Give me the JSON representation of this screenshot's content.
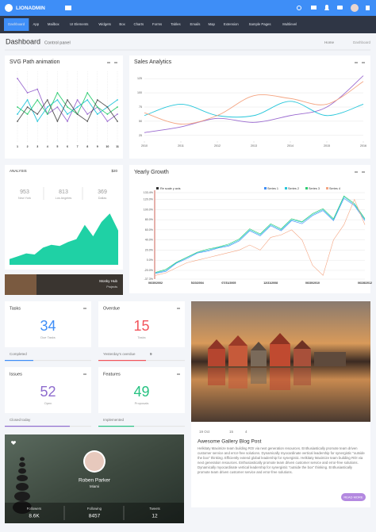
{
  "topbar": {
    "logo": "LIONADMIN"
  },
  "nav": [
    "Dashboard",
    "App",
    "Mailbox",
    "UI Elements",
    "Widgets",
    "Box",
    "Charts",
    "Forms",
    "Tables",
    "Emails",
    "Map",
    "Extension",
    "Sample Pages",
    "Multilevel"
  ],
  "page": {
    "title": "Dashboard",
    "subtitle": "Control panel",
    "breadcrumb": [
      "Home",
      "Dashboard"
    ]
  },
  "cards": {
    "svg_title": "SVG Path animation",
    "sales_title": "Sales Analytics",
    "growth_title": "Yearly Growth",
    "growth_toggle": "Re scale y axis",
    "analysis": {
      "label": "ANALYSIS",
      "value": "$20",
      "stats": [
        {
          "value": "953",
          "label": "New York"
        },
        {
          "value": "813",
          "label": "Los Angeles"
        },
        {
          "value": "369",
          "label": "Dallas"
        }
      ]
    },
    "image_caption": [
      "Monky Hub",
      "Projects"
    ]
  },
  "stats": [
    {
      "title": "Tasks",
      "value": "34",
      "label": "Due Tasks",
      "footer": "Completed",
      "count": null
    },
    {
      "title": "Overdue",
      "value": "15",
      "label": "Tasks",
      "footer": "Yesterday's overdue",
      "count": "9"
    },
    {
      "title": "Issues",
      "value": "52",
      "label": "Open",
      "footer": "Closed today",
      "count": null
    },
    {
      "title": "Features",
      "value": "49",
      "label": "Proposals",
      "footer": "Implemented",
      "count": null
    }
  ],
  "blog": {
    "date": "19 Oct",
    "likes": "15",
    "comments": "4",
    "title": "Awesome Gallery Blog Post",
    "text": "Helkitaty Maximize team building ROI via next generation resources. Enthusiastically promote team driven customer service and error-free solutions. Dynamically myocardinate vertical leadership for synergistic \"outside the box\" thinking. Efficiently extend global leadership for synergistic. Helkitaty Maximize team building ROI via next generation resources. Enthusiastically promote team driven customer service and error-free solutions. Dynamically myocardinate vertical leadership for synergistic \"outside the box\" thinking. Enthusiastically promote team driven customer service and error-free solutions.",
    "button": "READ MORE"
  },
  "profile": {
    "name": "Roben Parker",
    "location": "Miami",
    "stats": [
      {
        "label": "Followers",
        "value": "8.6K"
      },
      {
        "label": "Following",
        "value": "8457"
      },
      {
        "label": "Tweets",
        "value": "12"
      }
    ]
  },
  "chart_data": [
    {
      "type": "line",
      "categories": [
        "1",
        "2",
        "3",
        "4",
        "5",
        "6",
        "7",
        "8",
        "9",
        "10",
        "11"
      ],
      "ylim": [
        0,
        10
      ],
      "grid": true,
      "series": [
        {
          "color": "#9b6bd0",
          "values": [
            9,
            7,
            7.5,
            4,
            5,
            3,
            6,
            4,
            5,
            3,
            4
          ]
        },
        {
          "color": "#26c6da",
          "values": [
            4,
            6,
            3,
            5,
            6,
            4,
            5,
            6,
            4,
            5,
            6
          ]
        },
        {
          "color": "#2ecc71",
          "values": [
            5,
            4,
            6,
            4,
            7,
            5,
            4,
            7,
            5,
            4,
            5
          ]
        },
        {
          "color": "#555555",
          "values": [
            3,
            5,
            4,
            6,
            3,
            6,
            4,
            3,
            6,
            5,
            3
          ]
        }
      ]
    },
    {
      "type": "line",
      "smooth": true,
      "x": [
        2010,
        2011,
        2012,
        2013,
        2014,
        2015,
        2016
      ],
      "xlim": [
        2010,
        2016
      ],
      "xticks": [
        2010,
        2011,
        2012,
        2013,
        2014,
        2015,
        2016
      ],
      "ylim": [
        15,
        135
      ],
      "yticks": [
        25,
        50,
        75,
        100,
        125
      ],
      "grid": true,
      "series": [
        {
          "color": "#9b6bd0",
          "values": [
            30,
            40,
            55,
            48,
            60,
            75,
            130
          ]
        },
        {
          "color": "#26c6da",
          "values": [
            60,
            80,
            60,
            60,
            85,
            60,
            80
          ]
        },
        {
          "color": "#f4a582",
          "values": [
            65,
            45,
            60,
            95,
            90,
            80,
            120
          ]
        }
      ]
    },
    {
      "type": "area",
      "color": "#1fd1a5",
      "ylim": [
        0,
        100
      ],
      "values": [
        10,
        15,
        20,
        18,
        30,
        35,
        33,
        40,
        45,
        70,
        50,
        75,
        90,
        60
      ]
    },
    {
      "type": "line",
      "ylim": [
        -37.3,
        133.4
      ],
      "grid": true,
      "categories": [
        "06/30/2002",
        null,
        null,
        null,
        "5/23/2004",
        null,
        null,
        "07/31/2005",
        null,
        null,
        null,
        "12/31/2008",
        null,
        null,
        null,
        "06/30/2010",
        null,
        null,
        null,
        null,
        "06/28/2012"
      ],
      "yticks": [
        {
          "value": -37.3,
          "label": "-37.3%"
        },
        {
          "value": -20,
          "label": "-20.0%"
        },
        {
          "value": 0,
          "label": "0.0%"
        },
        {
          "value": 20,
          "label": "20.0%"
        },
        {
          "value": 40,
          "label": "40.0%"
        },
        {
          "value": 60,
          "label": "60.0%"
        },
        {
          "value": 80,
          "label": "80.0%"
        },
        {
          "value": 100,
          "label": "100.0%"
        },
        {
          "value": 120,
          "label": "120.0%"
        },
        {
          "value": 133.4,
          "label": "133.4%"
        }
      ],
      "series": [
        {
          "name": "Series 1",
          "color": "#3e8ef7",
          "values": [
            -26,
            -22,
            -6,
            3,
            14,
            18,
            24,
            28,
            38,
            58,
            48,
            68,
            58,
            78,
            72,
            88,
            98,
            78,
            122,
            108,
            78
          ]
        },
        {
          "name": "Series 2",
          "color": "#26c6da",
          "values": [
            -25,
            -20,
            -5,
            5,
            15,
            20,
            25,
            30,
            40,
            60,
            50,
            70,
            60,
            80,
            75,
            90,
            100,
            80,
            125,
            110,
            80
          ]
        },
        {
          "name": "Series 3",
          "color": "#2ecc71",
          "values": [
            -24,
            -18,
            -4,
            6,
            16,
            22,
            26,
            32,
            42,
            62,
            52,
            72,
            62,
            82,
            76,
            92,
            102,
            82,
            127,
            112,
            82
          ]
        },
        {
          "name": "Series 4",
          "color": "#f4a582",
          "values": [
            -30,
            -25,
            -15,
            -5,
            0,
            5,
            10,
            15,
            20,
            30,
            20,
            45,
            50,
            60,
            40,
            -10,
            -30,
            40,
            70,
            120,
            70
          ]
        }
      ]
    }
  ]
}
